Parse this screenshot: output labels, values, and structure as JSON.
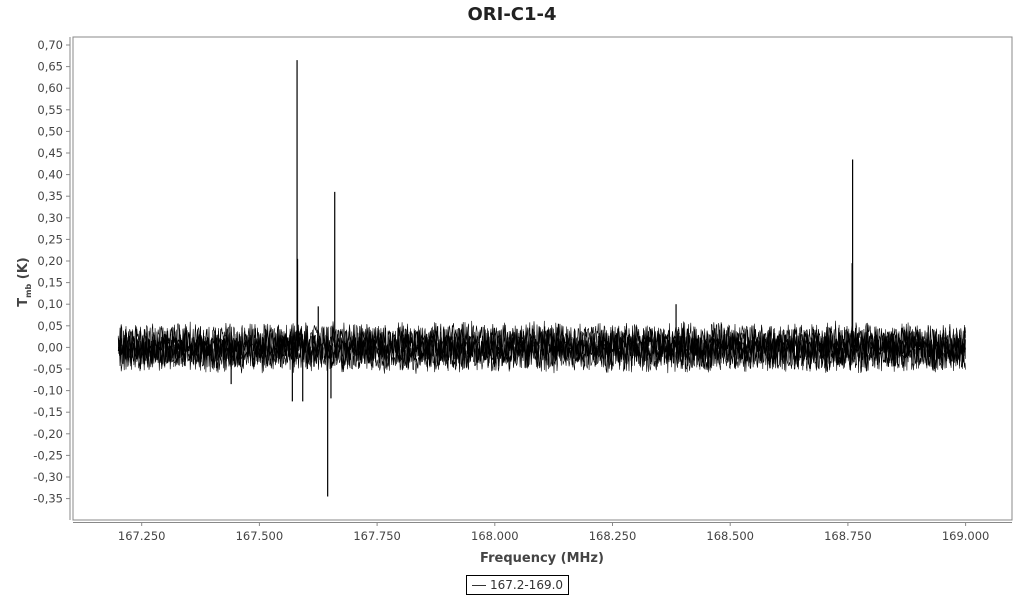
{
  "chart_data": {
    "type": "line",
    "title": "ORI-C1-4",
    "xlabel": "Frequency (MHz)",
    "ylabel": "T_mb (K)",
    "ylabel_main": "T",
    "ylabel_sub": "mb",
    "ylabel_unit": " (K)",
    "xlim": [
      167.2,
      169.0
    ],
    "ylim": [
      -0.35,
      0.7
    ],
    "x_ticks": [
      "167.250",
      "167.500",
      "167.750",
      "168.000",
      "168.250",
      "168.500",
      "168.750",
      "169.000"
    ],
    "x_tick_values": [
      167.25,
      167.5,
      167.75,
      168.0,
      168.25,
      168.5,
      168.75,
      169.0
    ],
    "y_ticks": [
      "0,70",
      "0,65",
      "0,60",
      "0,55",
      "0,50",
      "0,45",
      "0,40",
      "0,35",
      "0,30",
      "0,25",
      "0,20",
      "0,15",
      "0,10",
      "0,05",
      "0,00",
      "-0,05",
      "-0,10",
      "-0,15",
      "-0,20",
      "-0,25",
      "-0,30",
      "-0,35"
    ],
    "y_tick_values": [
      0.7,
      0.65,
      0.6,
      0.55,
      0.5,
      0.45,
      0.4,
      0.35,
      0.3,
      0.25,
      0.2,
      0.15,
      0.1,
      0.05,
      0.0,
      -0.05,
      -0.1,
      -0.15,
      -0.2,
      -0.25,
      -0.3,
      -0.35
    ],
    "grid": false,
    "legend_position": "bottom-center",
    "series": [
      {
        "name": "167.2-169.0",
        "color": "#000000",
        "x_range": [
          167.2,
          169.0
        ],
        "noise_level": 0.05,
        "features": [
          {
            "x": 167.58,
            "y": 0.665
          },
          {
            "x": 167.581,
            "y": 0.205
          },
          {
            "x": 167.66,
            "y": 0.36
          },
          {
            "x": 168.76,
            "y": 0.435
          },
          {
            "x": 168.759,
            "y": 0.195
          },
          {
            "x": 167.645,
            "y": -0.345
          },
          {
            "x": 167.57,
            "y": -0.125
          },
          {
            "x": 167.592,
            "y": -0.125
          },
          {
            "x": 167.652,
            "y": -0.118
          },
          {
            "x": 167.625,
            "y": 0.095
          },
          {
            "x": 168.385,
            "y": 0.1
          },
          {
            "x": 167.44,
            "y": -0.085
          }
        ]
      }
    ]
  }
}
